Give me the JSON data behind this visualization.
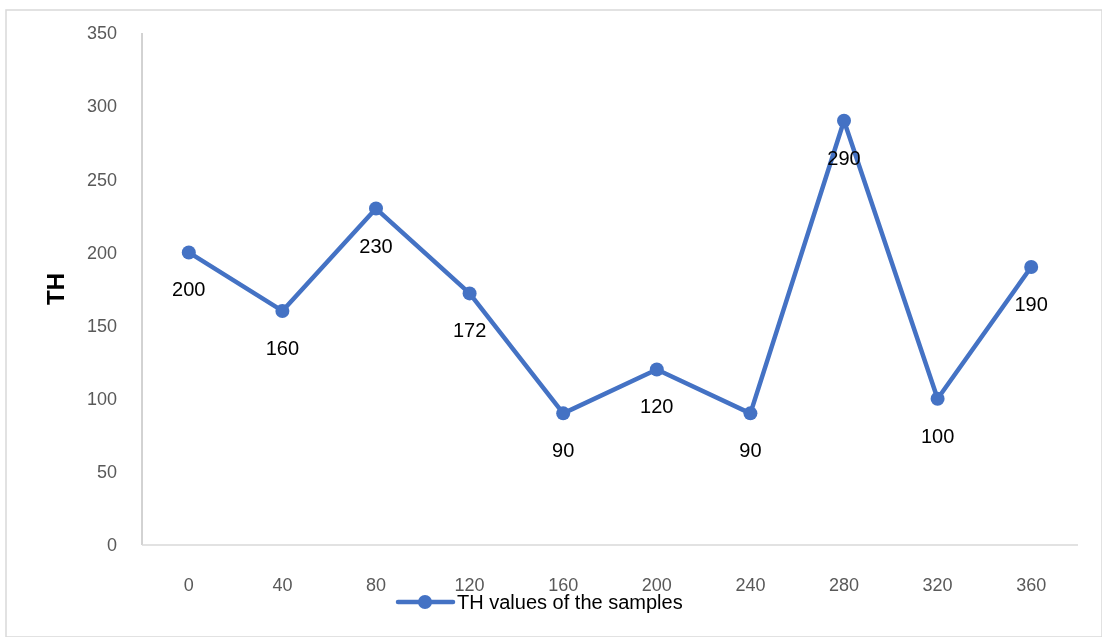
{
  "chart_data": {
    "type": "line",
    "ylabel": "TH",
    "categories": [
      "0",
      "40",
      "80",
      "120",
      "160",
      "200",
      "240",
      "280",
      "320",
      "360"
    ],
    "series": [
      {
        "name": "TH values of the samples",
        "color": "#4472c4",
        "values": [
          200,
          160,
          230,
          172,
          90,
          120,
          90,
          290,
          100,
          190
        ]
      }
    ],
    "ylim": [
      0,
      350
    ],
    "yticks": [
      0,
      50,
      100,
      150,
      200,
      250,
      300,
      350
    ],
    "grid": false,
    "legend": "bottom",
    "marker": "circle",
    "line_style": "solid",
    "data_labels": true
  }
}
